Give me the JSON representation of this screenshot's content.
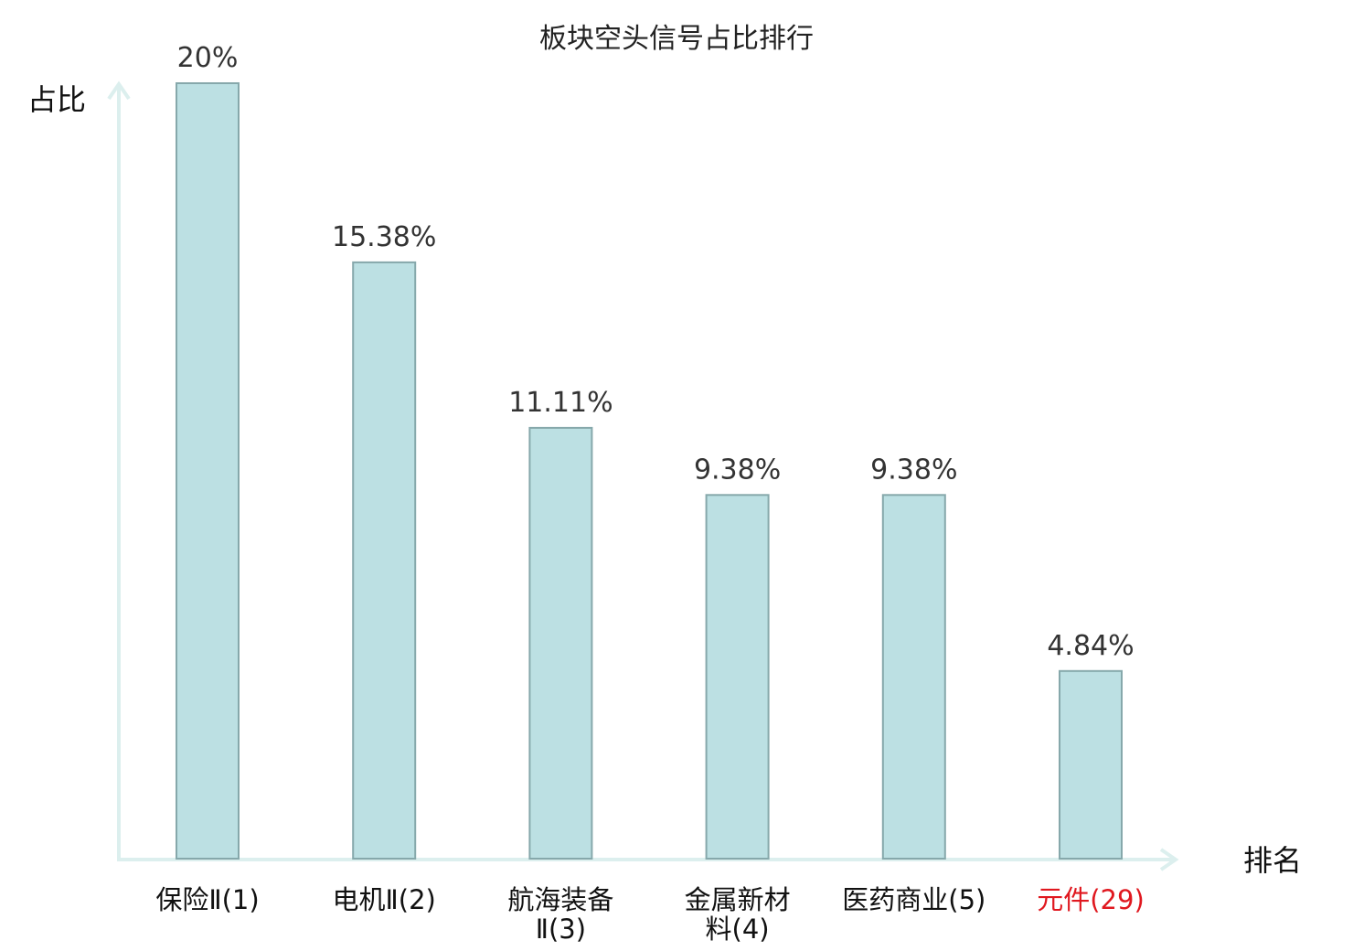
{
  "chart_data": {
    "type": "bar",
    "title": "板块空头信号占比排行",
    "ylabel": "占比",
    "xlabel": "排名",
    "categories": [
      "保险Ⅱ(1)",
      "电机Ⅱ(2)",
      "航海装备Ⅱ(3)",
      "金属新材料(4)",
      "医药商业(5)",
      "元件(29)"
    ],
    "category_lines": [
      [
        "保险Ⅱ(1)"
      ],
      [
        "电机Ⅱ(2)"
      ],
      [
        "航海装备",
        "Ⅱ(3)"
      ],
      [
        "金属新材",
        "料(4)"
      ],
      [
        "医药商业(5)"
      ],
      [
        "元件(29)"
      ]
    ],
    "values": [
      20,
      15.38,
      11.11,
      9.38,
      9.38,
      4.84
    ],
    "value_labels": [
      "20%",
      "15.38%",
      "11.11%",
      "9.38%",
      "9.38%",
      "4.84%"
    ],
    "highlight_index": 5,
    "ylim": [
      0,
      20
    ],
    "grid": false,
    "colors": {
      "bar_fill": "#bce0e3",
      "bar_stroke": "#86a8ab",
      "axis": "#dcefee",
      "highlight_text": "#e0181f"
    }
  }
}
